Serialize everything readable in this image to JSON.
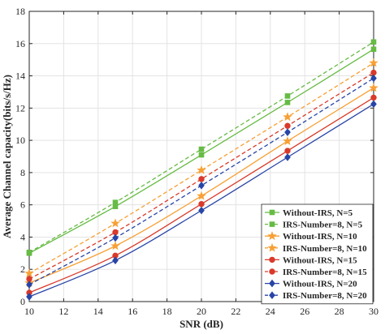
{
  "chart_data": {
    "type": "line",
    "title": "",
    "xlabel": "SNR (dB)",
    "ylabel": "Average Channel capacity(bits/s/Hz)",
    "xlim": [
      10,
      30
    ],
    "ylim": [
      0,
      18
    ],
    "xticks": [
      10,
      12,
      14,
      16,
      18,
      20,
      22,
      24,
      26,
      28,
      30
    ],
    "yticks": [
      0,
      2,
      4,
      6,
      8,
      10,
      12,
      14,
      16,
      18
    ],
    "grid": true,
    "legend": "bottom-right",
    "x": [
      10,
      15,
      20,
      25,
      30
    ],
    "series": [
      {
        "name": "Without-IRS, N=5",
        "color": "#66bb44",
        "dash": "solid",
        "marker": "square",
        "values": [
          3.0,
          5.9,
          9.1,
          12.35,
          15.65
        ]
      },
      {
        "name": "IRS-Number=8, N=5",
        "color": "#66bb44",
        "dash": "dashed",
        "marker": "square",
        "values": [
          3.05,
          6.15,
          9.45,
          12.75,
          16.1
        ]
      },
      {
        "name": "Without-IRS, N=10",
        "color": "#f7a035",
        "dash": "solid",
        "marker": "star",
        "values": [
          1.15,
          3.45,
          6.55,
          9.95,
          13.25
        ]
      },
      {
        "name": "IRS-Number=8, N=10",
        "color": "#f7a035",
        "dash": "dashed",
        "marker": "star",
        "values": [
          1.75,
          4.85,
          8.15,
          11.45,
          14.8
        ]
      },
      {
        "name": "Without-IRS, N=15",
        "color": "#d93a2b",
        "dash": "solid",
        "marker": "circle",
        "values": [
          0.55,
          2.85,
          6.05,
          9.35,
          12.65
        ]
      },
      {
        "name": "IRS-Number=8, N=15",
        "color": "#d93a2b",
        "dash": "dashed",
        "marker": "circle",
        "values": [
          1.4,
          4.3,
          7.6,
          10.9,
          14.2
        ]
      },
      {
        "name": "Without-IRS, N=20",
        "color": "#2845a6",
        "dash": "solid",
        "marker": "diamond",
        "values": [
          0.3,
          2.55,
          5.65,
          8.95,
          12.25
        ]
      },
      {
        "name": "IRS-Number=8, N=20",
        "color": "#2845a6",
        "dash": "dashed",
        "marker": "diamond",
        "values": [
          1.05,
          3.95,
          7.2,
          10.5,
          13.85
        ]
      }
    ]
  }
}
